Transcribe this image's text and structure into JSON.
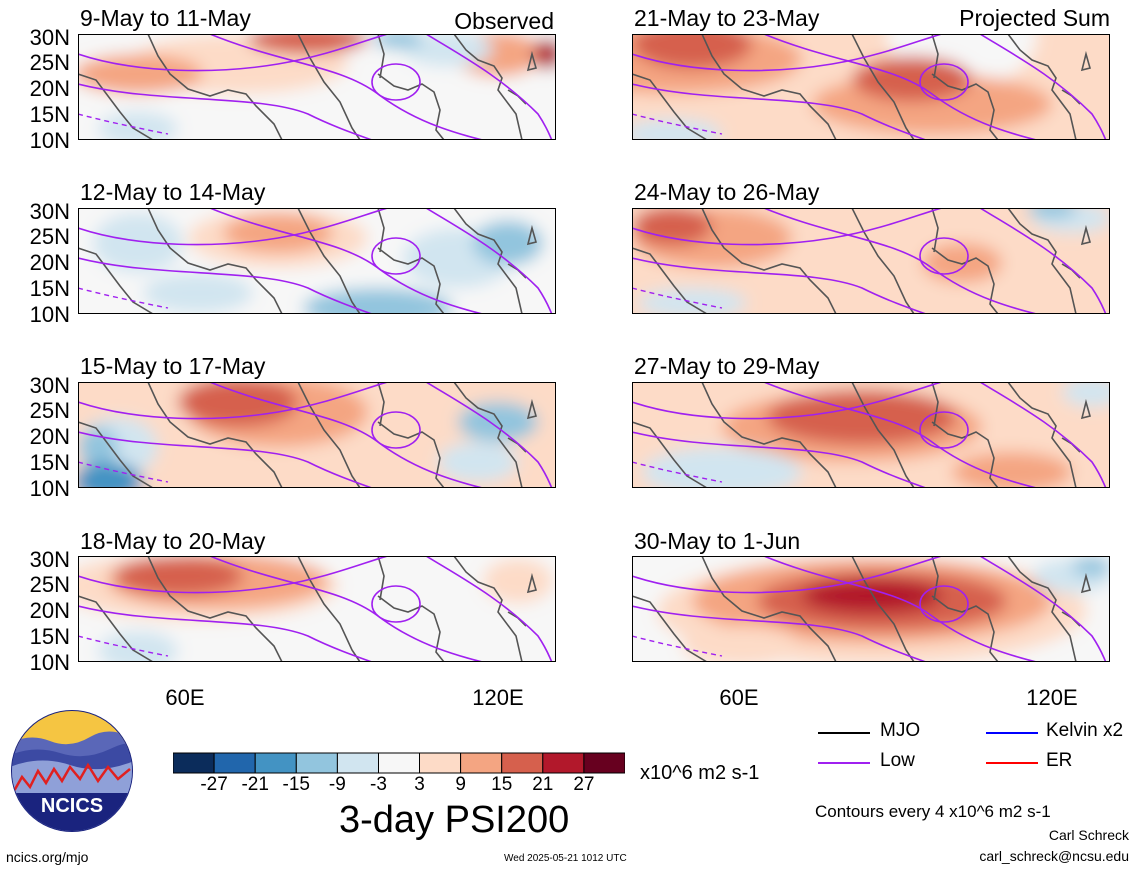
{
  "panels": [
    {
      "title": "9-May to 11-May",
      "tag": "Observed"
    },
    {
      "title": "21-May to 23-May",
      "tag": "Projected Sum"
    },
    {
      "title": "12-May to 14-May",
      "tag": ""
    },
    {
      "title": "24-May to 26-May",
      "tag": ""
    },
    {
      "title": "15-May to 17-May",
      "tag": ""
    },
    {
      "title": "27-May to 29-May",
      "tag": ""
    },
    {
      "title": "18-May to 20-May",
      "tag": ""
    },
    {
      "title": "30-May to 1-Jun",
      "tag": ""
    }
  ],
  "lat_labels": [
    "30N",
    "25N",
    "20N",
    "15N",
    "10N"
  ],
  "lon_labels": [
    "60E",
    "120E"
  ],
  "colorbar": {
    "colors": [
      "#0b2c5b",
      "#2166ac",
      "#4393c3",
      "#92c5de",
      "#d1e5f0",
      "#f7f7f7",
      "#fddbc7",
      "#f4a582",
      "#d6604d",
      "#b2182b",
      "#67001f"
    ],
    "labels": [
      "-27",
      "-21",
      "-15",
      "-9",
      "-3",
      "3",
      "9",
      "15",
      "21",
      "27"
    ],
    "units": "x10^6 m2 s-1"
  },
  "title": "3-day PSI200",
  "legend": [
    {
      "label": "MJO",
      "color": "#000000"
    },
    {
      "label": "Kelvin x2",
      "color": "#0000ff"
    },
    {
      "label": "Low",
      "color": "#a020f0"
    },
    {
      "label": "ER",
      "color": "#ff0000"
    }
  ],
  "contour_note": "Contours every 4 x10^6 m2 s-1",
  "author": "Carl Schreck",
  "email": "carl_schreck@ncsu.edu",
  "site": "ncics.org/mjo",
  "timestamp": "Wed 2025-05-21 1012 UTC",
  "logo_text": "NCICS"
}
